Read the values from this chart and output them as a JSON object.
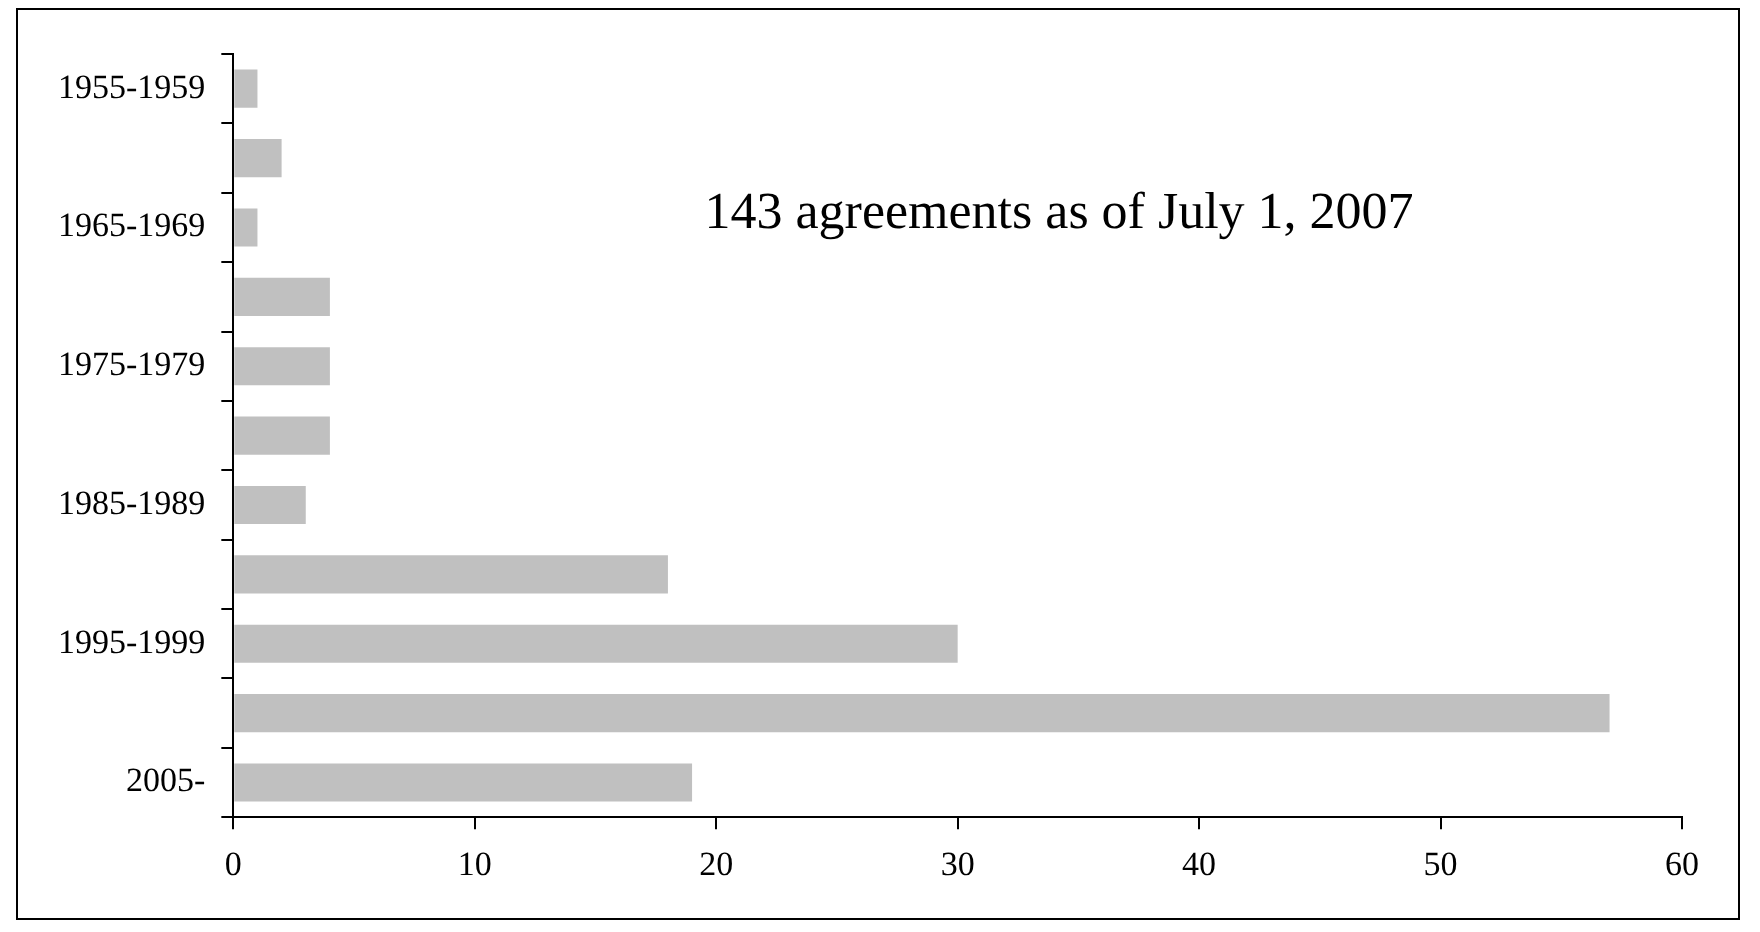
{
  "chart_data": {
    "type": "bar",
    "orientation": "horizontal",
    "categories": [
      "1955-1959",
      null,
      "1965-1969",
      null,
      "1975-1979",
      null,
      "1985-1989",
      null,
      "1995-1999",
      null,
      "2005-"
    ],
    "values": [
      1,
      2,
      1,
      4,
      4,
      4,
      3,
      18,
      30,
      57,
      19
    ],
    "color": "#c0c0c0",
    "xlim": [
      0,
      60
    ],
    "xticks": [
      0,
      10,
      20,
      30,
      40,
      50,
      60
    ],
    "annotations": [
      "143 agreements as of July 1, 2007"
    ],
    "legend": false
  }
}
